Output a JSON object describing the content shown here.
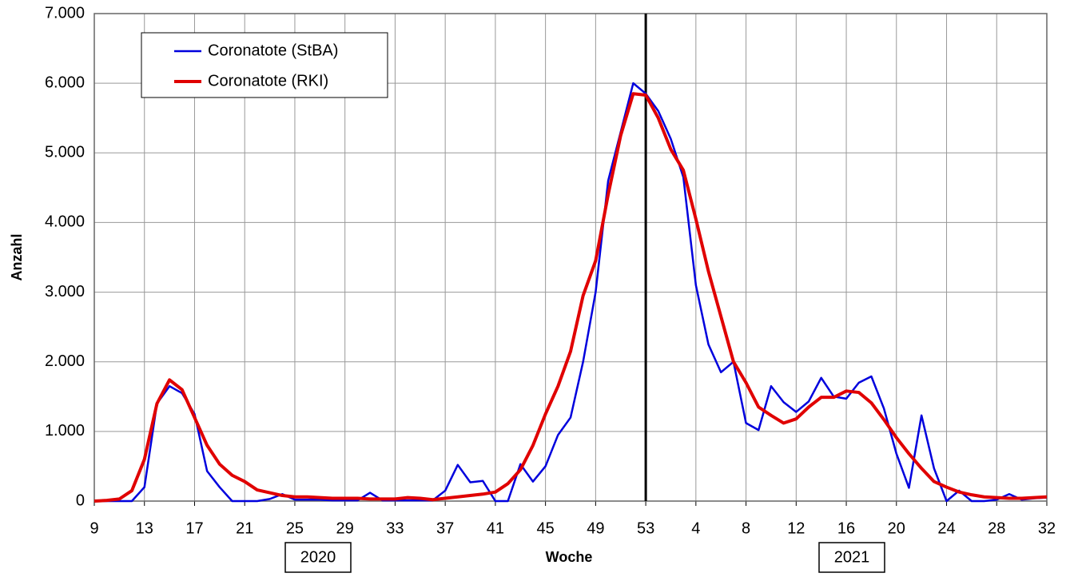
{
  "chart_data": {
    "type": "line",
    "x_label": "Woche",
    "y_label": "Anzahl",
    "categories": [
      "9",
      null,
      null,
      null,
      "13",
      null,
      null,
      null,
      "17",
      null,
      null,
      null,
      "21",
      null,
      null,
      null,
      "25",
      null,
      null,
      null,
      "29",
      null,
      null,
      null,
      "33",
      null,
      null,
      null,
      "37",
      null,
      null,
      null,
      "41",
      null,
      null,
      null,
      "45",
      null,
      null,
      null,
      "49",
      null,
      null,
      null,
      "53",
      null,
      null,
      null,
      "4",
      null,
      null,
      null,
      "8",
      null,
      null,
      null,
      "12",
      null,
      null,
      null,
      "16",
      null,
      null,
      null,
      "20",
      null,
      null,
      null,
      "24",
      null,
      null,
      null,
      "28",
      null,
      null,
      null,
      "32"
    ],
    "series": [
      {
        "name": "Coronatote (StBA)",
        "color": "#0000dd",
        "width": 2.5,
        "values": [
          0,
          0,
          0,
          0,
          200,
          1400,
          1650,
          1550,
          1250,
          430,
          200,
          0,
          0,
          0,
          30,
          100,
          20,
          20,
          20,
          10,
          10,
          10,
          120,
          10,
          10,
          10,
          10,
          10,
          150,
          520,
          270,
          290,
          0,
          0,
          530,
          280,
          500,
          950,
          1200,
          2000,
          3000,
          4600,
          5300,
          6000,
          5850,
          5600,
          5200,
          4650,
          3100,
          2250,
          1850,
          2000,
          1120,
          1020,
          1650,
          1420,
          1280,
          1430,
          1770,
          1500,
          1470,
          1700,
          1790,
          1330,
          680,
          190,
          1230,
          470,
          0,
          150,
          0,
          0,
          20,
          100,
          20,
          40,
          50
        ]
      },
      {
        "name": "Coronatote (RKI)",
        "color": "#e00000",
        "width": 4,
        "values": [
          0,
          10,
          30,
          150,
          600,
          1400,
          1740,
          1600,
          1200,
          800,
          530,
          370,
          280,
          160,
          120,
          80,
          60,
          60,
          50,
          40,
          40,
          40,
          30,
          30,
          30,
          50,
          40,
          20,
          40,
          60,
          80,
          100,
          130,
          250,
          450,
          800,
          1250,
          1650,
          2150,
          2950,
          3450,
          4400,
          5250,
          5850,
          5830,
          5500,
          5050,
          4750,
          4050,
          3300,
          2650,
          2000,
          1700,
          1350,
          1230,
          1120,
          1180,
          1350,
          1490,
          1490,
          1580,
          1560,
          1410,
          1170,
          910,
          680,
          470,
          280,
          200,
          130,
          90,
          60,
          50,
          40,
          40,
          50,
          60
        ]
      }
    ],
    "ylim": [
      0,
      7000
    ],
    "yticks": [
      0,
      {
        "value": 1000,
        "label": "1.000"
      },
      {
        "value": 2000,
        "label": "2.000"
      },
      {
        "value": 3000,
        "label": "3.000"
      },
      {
        "value": 4000,
        "label": "4.000"
      },
      {
        "value": 5000,
        "label": "5.000"
      },
      {
        "value": 6000,
        "label": "6.000"
      },
      {
        "value": 7000,
        "label": "7.000"
      }
    ],
    "grid": true,
    "legend": "upper-left",
    "vertical_line_category": "53",
    "annotations": [
      "2020",
      "2021"
    ]
  }
}
